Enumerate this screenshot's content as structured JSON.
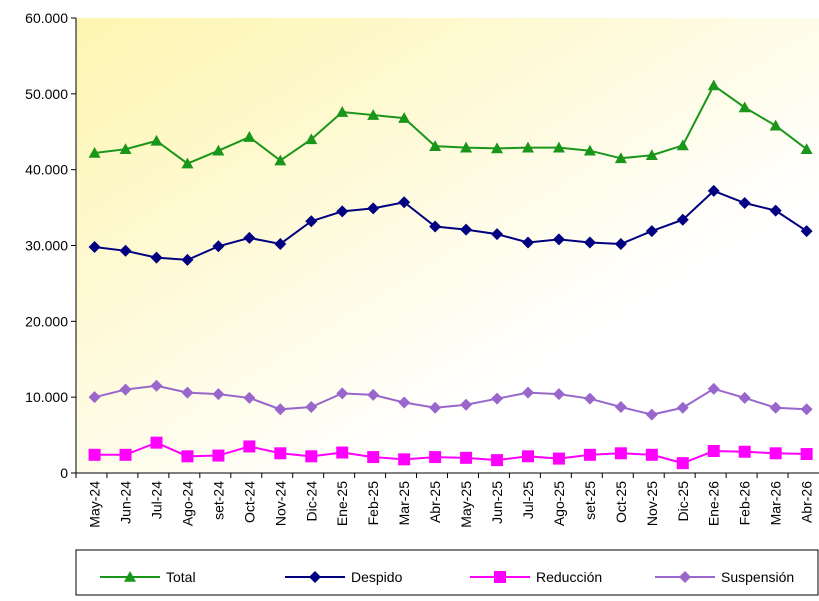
{
  "chart_data": {
    "type": "line",
    "categories": [
      "May-24",
      "Jun-24",
      "Jul-24",
      "Ago-24",
      "set-24",
      "Oct-24",
      "Nov-24",
      "Dic-24",
      "Ene-25",
      "Feb-25",
      "Mar-25",
      "Abr-25",
      "May-25",
      "Jun-25",
      "Jul-25",
      "Ago-25",
      "set-25",
      "Oct-25",
      "Nov-25",
      "Dic-25",
      "Ene-26",
      "Feb-26",
      "Mar-26",
      "Abr-26"
    ],
    "series": [
      {
        "name": "Total",
        "color": "#1a961a",
        "marker": "triangle",
        "values": [
          42200,
          42700,
          43800,
          40800,
          42500,
          44300,
          41200,
          44000,
          47600,
          47200,
          46800,
          43100,
          42900,
          42800,
          42900,
          42900,
          42500,
          41500,
          41900,
          43200,
          51100,
          48200,
          45800,
          42700
        ]
      },
      {
        "name": "Despido",
        "color": "#000080",
        "marker": "diamond",
        "values": [
          29800,
          29300,
          28400,
          28100,
          29900,
          31000,
          30200,
          33200,
          34500,
          34900,
          35700,
          32500,
          32100,
          31500,
          30400,
          30800,
          30400,
          30200,
          31900,
          33400,
          37200,
          35600,
          34600,
          31900
        ]
      },
      {
        "name": "Reducción",
        "color": "#ff00ff",
        "marker": "square",
        "values": [
          2400,
          2400,
          4000,
          2200,
          2300,
          3500,
          2600,
          2200,
          2700,
          2100,
          1800,
          2100,
          2000,
          1700,
          2200,
          1900,
          2400,
          2600,
          2400,
          1300,
          2900,
          2800,
          2600,
          2500
        ]
      },
      {
        "name": "Suspensión",
        "color": "#9966cc",
        "marker": "diamond",
        "values": [
          10000,
          11000,
          11500,
          10600,
          10400,
          9900,
          8400,
          8700,
          10500,
          10300,
          9300,
          8600,
          9000,
          9800,
          10600,
          10400,
          9800,
          8700,
          7700,
          8600,
          11100,
          9900,
          8600,
          8400
        ]
      }
    ],
    "ylim": [
      0,
      60000
    ],
    "yticks": [
      0,
      {
        "value": 10000,
        "label": "10.000"
      },
      {
        "value": 20000,
        "label": "20.000"
      },
      {
        "value": 30000,
        "label": "30.000"
      },
      {
        "value": 40000,
        "label": "40.000"
      },
      {
        "value": 50000,
        "label": "50.000"
      },
      {
        "value": 60000,
        "label": "60.000"
      }
    ],
    "legend": "bottom"
  }
}
